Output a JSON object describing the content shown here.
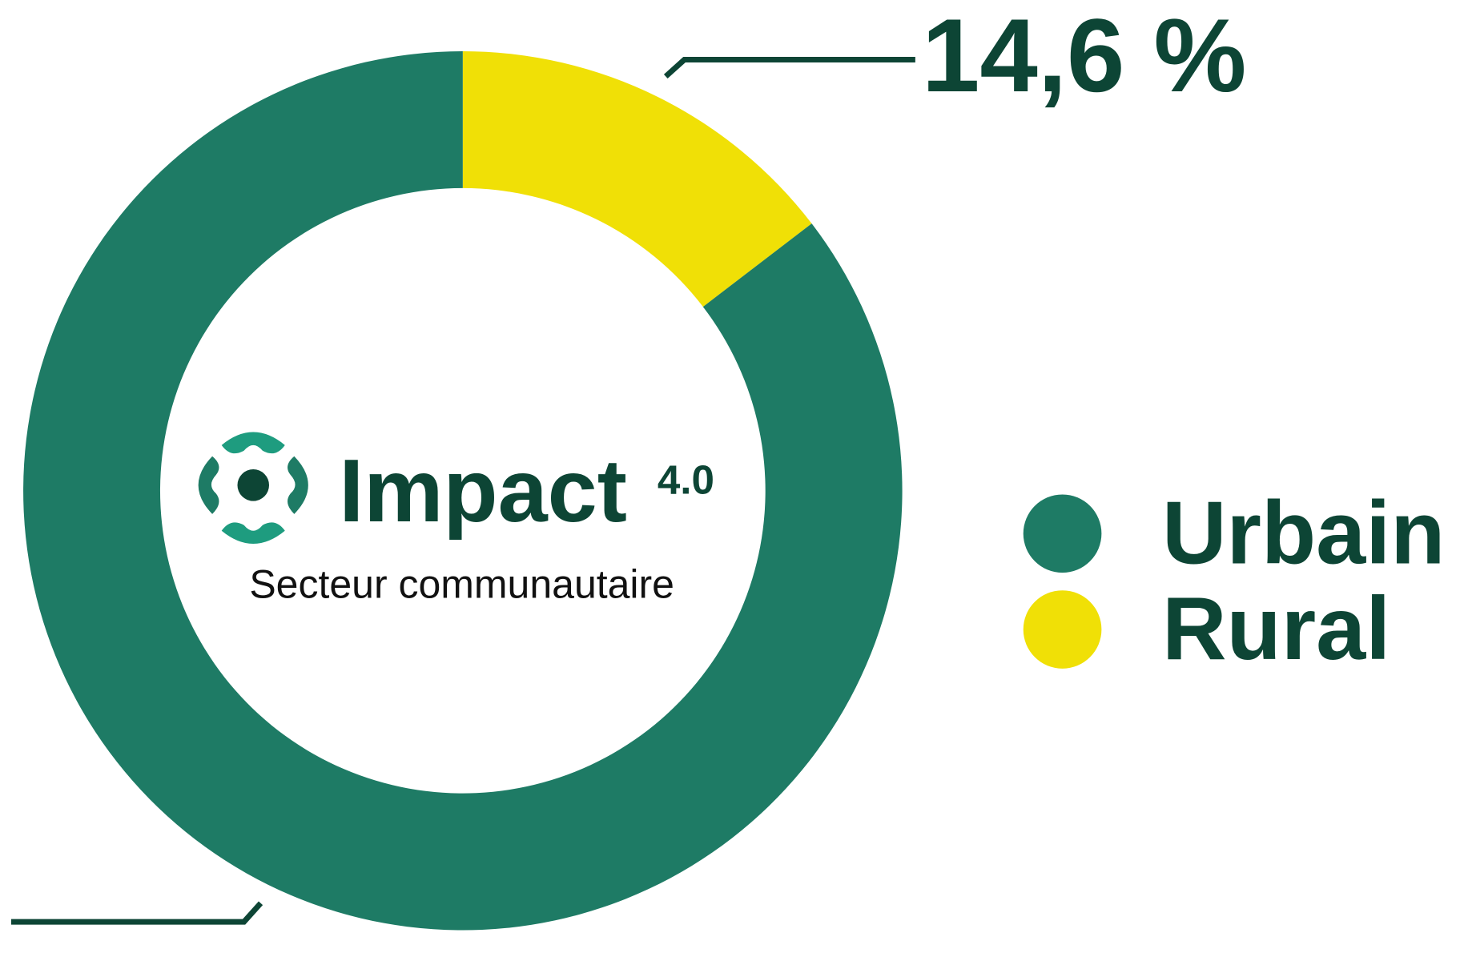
{
  "chart_data": {
    "type": "donut",
    "categories": [
      "Urbain",
      "Rural"
    ],
    "values": [
      85.4,
      14.6
    ],
    "value_labels": [
      null,
      "14,6 %"
    ],
    "colors": [
      "#1e7b65",
      "#f0e006"
    ],
    "legend": "right"
  },
  "logo": {
    "name": "Impact",
    "version": "4.0",
    "tagline": "Secteur communautaire"
  }
}
